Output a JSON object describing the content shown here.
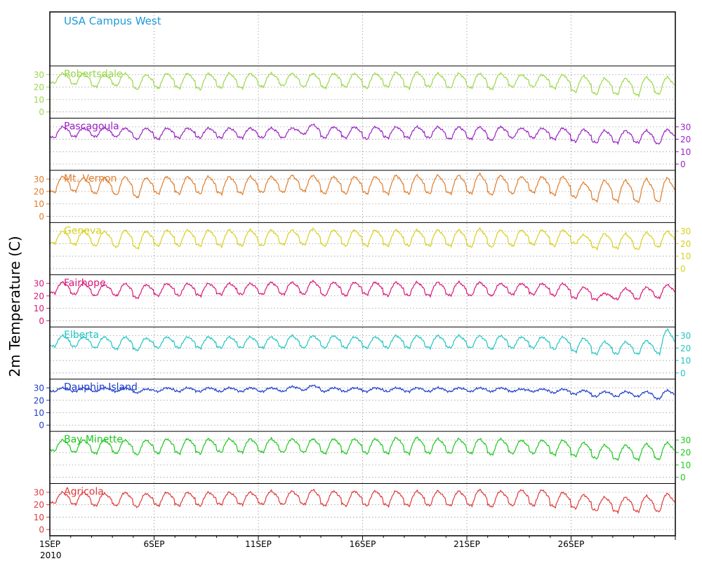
{
  "chart_data": {
    "type": "line",
    "title": "USA Campus West",
    "ylabel": "2m Temperature (C)",
    "x_start": "2010-09-01",
    "x_end": "2010-10-01",
    "x_tick_labels": [
      "1SEP",
      "6SEP",
      "11SEP",
      "16SEP",
      "21SEP",
      "26SEP"
    ],
    "x_year_label": "2010",
    "y_ticks": [
      0,
      10,
      20,
      30
    ],
    "ylim": [
      -5,
      37
    ],
    "grid": true,
    "colors": {
      "title": "#1e9bdc",
      "axis": "#000000",
      "grid": "#9a9a9a"
    },
    "series": [
      {
        "name": "Robertsdale",
        "color": "#9ad84a",
        "axis_side": "left",
        "baseline": 24,
        "amplitude": 11,
        "daily_min": [
          23,
          22,
          20,
          21,
          18,
          19,
          19,
          18,
          19,
          19,
          20,
          21,
          20,
          19,
          20,
          19,
          20,
          19,
          20,
          19,
          19,
          18,
          20,
          20,
          19,
          16,
          14,
          14,
          13,
          14
        ],
        "daily_max": [
          31,
          31,
          30,
          31,
          30,
          31,
          31,
          31,
          31,
          31,
          31,
          31,
          31,
          31,
          31,
          31,
          32,
          32,
          31,
          31,
          31,
          31,
          30,
          30,
          30,
          29,
          27,
          27,
          28,
          28
        ]
      },
      {
        "name": "Pascagoula",
        "color": "#9a22c4",
        "axis_side": "right",
        "baseline": 25,
        "amplitude": 7,
        "daily_min": [
          21,
          22,
          22,
          22,
          20,
          20,
          21,
          21,
          21,
          21,
          21,
          21,
          24,
          21,
          21,
          20,
          21,
          21,
          21,
          20,
          20,
          19,
          21,
          21,
          20,
          18,
          17,
          17,
          17,
          16
        ],
        "daily_max": [
          30,
          29,
          29,
          29,
          29,
          29,
          29,
          29,
          29,
          29,
          29,
          29,
          32,
          30,
          30,
          30,
          30,
          30,
          30,
          30,
          30,
          30,
          29,
          29,
          29,
          28,
          27,
          27,
          27,
          28
        ]
      },
      {
        "name": "Mt. Vernon",
        "color": "#e07c2a",
        "axis_side": "left",
        "baseline": 24,
        "amplitude": 13,
        "daily_min": [
          19,
          20,
          18,
          17,
          15,
          18,
          18,
          18,
          18,
          18,
          19,
          19,
          20,
          18,
          18,
          18,
          18,
          18,
          18,
          18,
          18,
          17,
          18,
          19,
          17,
          15,
          12,
          12,
          11,
          11
        ],
        "daily_max": [
          32,
          31,
          31,
          32,
          31,
          32,
          32,
          32,
          32,
          32,
          32,
          33,
          33,
          32,
          32,
          32,
          33,
          33,
          33,
          33,
          34,
          33,
          32,
          32,
          32,
          27,
          29,
          29,
          30,
          31
        ]
      },
      {
        "name": "Geneva",
        "color": "#d8d01e",
        "axis_side": "right",
        "baseline": 24,
        "amplitude": 12,
        "daily_min": [
          20,
          19,
          18,
          17,
          16,
          18,
          18,
          18,
          18,
          18,
          18,
          19,
          19,
          18,
          18,
          18,
          18,
          18,
          18,
          18,
          17,
          17,
          18,
          19,
          18,
          20,
          16,
          16,
          15,
          17
        ],
        "daily_max": [
          30,
          30,
          30,
          31,
          30,
          31,
          31,
          31,
          31,
          31,
          31,
          31,
          32,
          31,
          31,
          31,
          31,
          31,
          31,
          31,
          32,
          31,
          31,
          31,
          31,
          27,
          28,
          28,
          29,
          30
        ]
      },
      {
        "name": "Fairhope",
        "color": "#d8197a",
        "axis_side": "left",
        "baseline": 25,
        "amplitude": 8,
        "daily_min": [
          22,
          21,
          20,
          20,
          18,
          20,
          20,
          20,
          21,
          21,
          21,
          21,
          21,
          20,
          20,
          21,
          20,
          20,
          20,
          20,
          20,
          20,
          21,
          21,
          20,
          18,
          17,
          17,
          17,
          18
        ],
        "daily_max": [
          31,
          30,
          29,
          30,
          29,
          30,
          30,
          30,
          30,
          30,
          31,
          31,
          32,
          31,
          31,
          31,
          31,
          31,
          31,
          31,
          31,
          30,
          30,
          30,
          30,
          27,
          22,
          26,
          27,
          29
        ]
      },
      {
        "name": "Elberta",
        "color": "#22c4c4",
        "axis_side": "right",
        "baseline": 24,
        "amplitude": 9,
        "daily_min": [
          21,
          21,
          20,
          19,
          18,
          20,
          20,
          20,
          20,
          20,
          20,
          20,
          20,
          20,
          20,
          20,
          20,
          20,
          20,
          20,
          20,
          19,
          20,
          20,
          19,
          17,
          15,
          15,
          15,
          15
        ],
        "daily_max": [
          30,
          29,
          29,
          29,
          28,
          29,
          29,
          29,
          29,
          29,
          29,
          30,
          30,
          30,
          29,
          29,
          30,
          30,
          30,
          30,
          30,
          30,
          29,
          29,
          29,
          28,
          25,
          25,
          26,
          35
        ]
      },
      {
        "name": "Dauphin Island",
        "color": "#1e3ec8",
        "axis_side": "left",
        "baseline": 28,
        "amplitude": 3,
        "daily_min": [
          27,
          27,
          27,
          27,
          26,
          27,
          27,
          27,
          27,
          27,
          27,
          27,
          28,
          27,
          27,
          27,
          27,
          27,
          27,
          27,
          27,
          27,
          27,
          27,
          26,
          25,
          23,
          23,
          23,
          21
        ],
        "daily_max": [
          30,
          30,
          30,
          30,
          29,
          30,
          30,
          30,
          30,
          30,
          30,
          31,
          32,
          30,
          30,
          30,
          30,
          30,
          30,
          30,
          30,
          30,
          29,
          29,
          29,
          28,
          27,
          27,
          27,
          28
        ]
      },
      {
        "name": "Bay Minette",
        "color": "#1ec81e",
        "axis_side": "right",
        "baseline": 24,
        "amplitude": 11,
        "daily_min": [
          21,
          20,
          19,
          19,
          18,
          19,
          19,
          19,
          20,
          20,
          20,
          20,
          20,
          19,
          19,
          19,
          19,
          19,
          19,
          19,
          19,
          18,
          19,
          19,
          18,
          17,
          15,
          14,
          14,
          14
        ],
        "daily_max": [
          30,
          30,
          30,
          30,
          30,
          31,
          31,
          31,
          31,
          31,
          31,
          31,
          31,
          31,
          31,
          31,
          32,
          32,
          31,
          31,
          31,
          31,
          30,
          30,
          30,
          28,
          26,
          26,
          27,
          28
        ]
      },
      {
        "name": "Agricola",
        "color": "#e03a3a",
        "axis_side": "left",
        "baseline": 24,
        "amplitude": 10,
        "daily_min": [
          21,
          20,
          19,
          19,
          18,
          19,
          19,
          19,
          20,
          20,
          20,
          20,
          20,
          19,
          19,
          19,
          19,
          19,
          19,
          19,
          19,
          18,
          19,
          19,
          18,
          17,
          15,
          14,
          14,
          14
        ],
        "daily_max": [
          30,
          30,
          29,
          30,
          29,
          30,
          30,
          30,
          30,
          30,
          31,
          31,
          32,
          31,
          31,
          31,
          31,
          31,
          31,
          31,
          32,
          31,
          32,
          32,
          30,
          28,
          26,
          26,
          27,
          29
        ]
      }
    ]
  }
}
